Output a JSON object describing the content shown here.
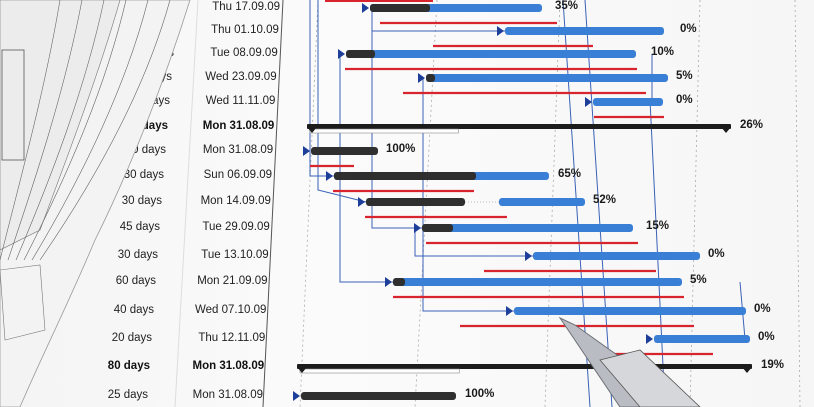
{
  "chart_data": {
    "type": "gantt",
    "title": "",
    "colors": {
      "progress": "#2f2f2f",
      "task": "#3a7fd6",
      "baseline": "#d8242c",
      "link": "#3a62b8",
      "summary": "#1c1c1c"
    },
    "rows": [
      {
        "duration": "",
        "finish": "Thu 17.09.09",
        "percent": "35%",
        "summary": false
      },
      {
        "duration": "",
        "finish": "Thu 01.10.09",
        "percent": "0%",
        "summary": false
      },
      {
        "duration": "ys",
        "finish": "Tue 08.09.09",
        "percent": "10%",
        "summary": false
      },
      {
        "duration": "ays",
        "finish": "Wed 23.09.09",
        "percent": "5%",
        "summary": false
      },
      {
        "duration": "lays",
        "finish": "Wed 11.11.09",
        "percent": "0%",
        "summary": false
      },
      {
        "duration": "days",
        "finish": "Mon 31.08.09",
        "percent": "26%",
        "summary": true
      },
      {
        "duration": "0 days",
        "finish": "Mon 31.08.09",
        "percent": "100%",
        "summary": false
      },
      {
        "duration": "30 days",
        "finish": "Sun 06.09.09",
        "percent": "65%",
        "summary": false
      },
      {
        "duration": "30 days",
        "finish": "Mon 14.09.09",
        "percent": "52%",
        "summary": false
      },
      {
        "duration": "45 days",
        "finish": "Tue 29.09.09",
        "percent": "15%",
        "summary": false
      },
      {
        "duration": "30 days",
        "finish": "Tue 13.10.09",
        "percent": "0%",
        "summary": false
      },
      {
        "duration": "60 days",
        "finish": "Mon 21.09.09",
        "percent": "5%",
        "summary": false
      },
      {
        "duration": "40 days",
        "finish": "Wed 07.10.09",
        "percent": "0%",
        "summary": false
      },
      {
        "duration": "20 days",
        "finish": "Thu 12.11.09",
        "percent": "0%",
        "summary": false
      },
      {
        "duration": "80 days",
        "finish": "Mon 31.08.09",
        "percent": "19%",
        "summary": true
      },
      {
        "duration": "25 days",
        "finish": "Mon 31.08.09",
        "percent": "100%",
        "summary": false
      }
    ]
  }
}
